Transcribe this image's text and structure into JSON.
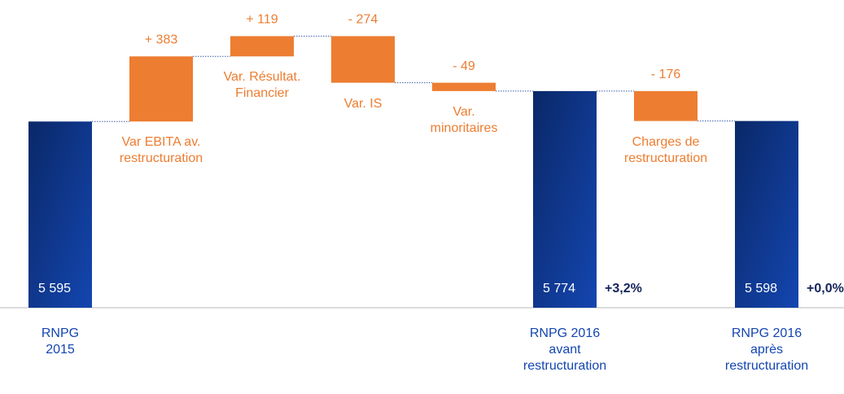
{
  "chart_data": {
    "type": "waterfall",
    "categories": [
      "RNPG\n2015",
      "Var EBITA av.\nrestructuration",
      "Var. Résultat.\nFinancier",
      "Var. IS",
      "Var.\nminoritaires",
      "RNPG 2016\navant\nrestructuration",
      "Charges de\nrestructuration",
      "RNPG 2016\naprès\nrestructuration"
    ],
    "measures": [
      "absolute",
      "relative",
      "relative",
      "relative",
      "relative",
      "absolute",
      "relative",
      "absolute"
    ],
    "values": [
      5595,
      383,
      119,
      -274,
      -49,
      5774,
      -176,
      5598
    ],
    "value_labels": [
      "5 595",
      "+ 383",
      "+ 119",
      "- 274",
      "- 49",
      "5 774",
      "- 176",
      "5 598"
    ],
    "annotations": [
      {
        "index": 5,
        "text": "+3,2%"
      },
      {
        "index": 7,
        "text": "+0,0%"
      }
    ],
    "ylim": [
      4500,
      6300
    ],
    "total_color": "#0d3a94",
    "delta_color": "#ed7d31"
  }
}
